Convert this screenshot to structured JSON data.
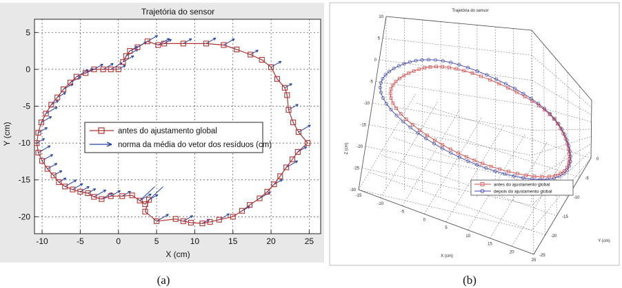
{
  "captions": {
    "a": "(a)",
    "b": "(b)"
  },
  "chart_data": [
    {
      "type": "line",
      "title": "Trajetória do sensor",
      "xlabel": "X (cm)",
      "ylabel": "Y (cm)",
      "xlim": [
        -11,
        26.5
      ],
      "ylim": [
        -22.3,
        6.8
      ],
      "xticks": [
        "-10",
        "-5",
        "0",
        "5",
        "10",
        "15",
        "20",
        "25"
      ],
      "yticks": [
        "5",
        "0",
        "-5",
        "-10",
        "-15",
        "-20"
      ],
      "grid": true,
      "legend_position": "center",
      "series": [
        {
          "name": "antes do ajustamento global",
          "color": "#b03030",
          "marker": "square",
          "points": [
            [
              0,
              0
            ],
            [
              -1,
              0
            ],
            [
              -2,
              0
            ],
            [
              -3.2,
              0
            ],
            [
              -4.3,
              -0.5
            ],
            [
              -5.5,
              -1
            ],
            [
              -6.3,
              -1.8
            ],
            [
              -7.2,
              -2.7
            ],
            [
              -8,
              -3.8
            ],
            [
              -8.8,
              -4.8
            ],
            [
              -9.5,
              -6
            ],
            [
              -10.1,
              -7.2
            ],
            [
              -10.5,
              -8.6
            ],
            [
              -10.7,
              -10
            ],
            [
              -10.5,
              -11.3
            ],
            [
              -10,
              -12.4
            ],
            [
              -9.3,
              -13.5
            ],
            [
              -8.5,
              -14.4
            ],
            [
              -7.8,
              -15.3
            ],
            [
              -7,
              -15.9
            ],
            [
              -6,
              -16.3
            ],
            [
              -5,
              -16.6
            ],
            [
              -4,
              -16.8
            ],
            [
              -3.2,
              -17.3
            ],
            [
              -2.2,
              -17.6
            ],
            [
              -1,
              -17.2
            ],
            [
              0.5,
              -17.2
            ],
            [
              1.8,
              -17.1
            ],
            [
              2.8,
              -17.8
            ],
            [
              3.5,
              -18.3
            ],
            [
              4,
              -17.7
            ],
            [
              3.5,
              -19.3
            ],
            [
              5,
              -20.6
            ],
            [
              7.5,
              -20.3
            ],
            [
              8.5,
              -20.6
            ],
            [
              9.5,
              -20.8
            ],
            [
              11,
              -20.9
            ],
            [
              12,
              -20.7
            ],
            [
              13.2,
              -20.4
            ],
            [
              15,
              -20
            ],
            [
              16.2,
              -19.2
            ],
            [
              17.2,
              -18.4
            ],
            [
              18.5,
              -17.5
            ],
            [
              19.5,
              -16.6
            ],
            [
              20.4,
              -15.6
            ],
            [
              21.2,
              -14.5
            ],
            [
              22,
              -13.3
            ],
            [
              22.8,
              -12.2
            ],
            [
              23.5,
              -11.2
            ],
            [
              24.8,
              -10
            ],
            [
              23.6,
              -8.5
            ],
            [
              22.9,
              -7.2
            ],
            [
              22.3,
              -5.5
            ],
            [
              22.1,
              -3.5
            ],
            [
              21.8,
              -2.5
            ],
            [
              20.8,
              -1.3
            ],
            [
              20,
              0.3
            ],
            [
              18.8,
              1.3
            ],
            [
              17.3,
              2
            ],
            [
              15.5,
              2.7
            ],
            [
              13.8,
              3.3
            ],
            [
              11.5,
              3.5
            ],
            [
              8.5,
              3.5
            ],
            [
              6,
              3.5
            ],
            [
              5.2,
              3.3
            ],
            [
              3.8,
              3.8
            ],
            [
              2.5,
              3
            ],
            [
              1.5,
              2.5
            ],
            [
              1,
              1.8
            ],
            [
              0.6,
              1
            ]
          ]
        },
        {
          "name": "norma da média do vetor dos resíduos (cm)",
          "color": "#1f3fa6",
          "type": "quiver"
        }
      ]
    },
    {
      "type": "line",
      "title": "Trajetória do sensor",
      "xlabel": "X (cm)",
      "ylabel": "Y (cm)",
      "zlabel": "Z (cm)",
      "projection": "3d",
      "xticks": [
        "-15",
        "-10",
        "-5",
        "0",
        "5",
        "10",
        "15",
        "20",
        "25"
      ],
      "yticks": [
        "0",
        "-5",
        "-10",
        "-15",
        "-20",
        "-25"
      ],
      "zticks": [
        "10",
        "5",
        "0",
        "-5",
        "-10",
        "-15",
        "-20",
        "-25",
        "-30"
      ],
      "grid": true,
      "legend_position": "bottom-center",
      "series": [
        {
          "name": "antes do ajustamento global",
          "color": "#d64545",
          "marker": "square"
        },
        {
          "name": "depois do ajustamento global",
          "color": "#3a43b0",
          "marker": "circle"
        }
      ]
    }
  ]
}
